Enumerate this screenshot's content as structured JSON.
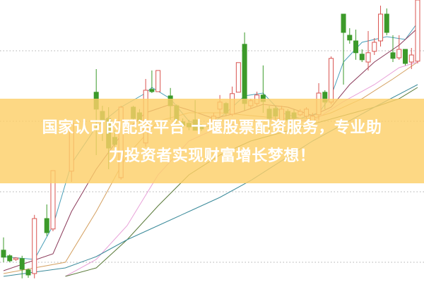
{
  "banner": {
    "line1": "国家认可的配资平台 十堰股票配资服务，专业助",
    "line2": "力投资者实现财富增长梦想！"
  },
  "chart_data": {
    "type": "candlestick",
    "title": "",
    "xlabel": "",
    "ylabel": "",
    "xlim": [
      0,
      67
    ],
    "ylim": [
      0,
      100
    ],
    "grid": true,
    "grid_values": [
      82,
      57,
      32,
      7
    ],
    "colors": {
      "up": "#d9534f",
      "down": "#3c9a2a",
      "grid": "#b0b0b0",
      "banner": "#fcd069"
    },
    "candles": [
      {
        "t": 0,
        "o": 11.3,
        "c": 8.8,
        "h": 15.8,
        "l": 7
      },
      {
        "t": 1,
        "o": 9.3,
        "c": 7.5,
        "h": 9.8,
        "l": 7
      },
      {
        "t": 2,
        "o": 8,
        "c": 8.5,
        "h": 8.8,
        "l": 7.5
      },
      {
        "t": 3,
        "o": 8.3,
        "c": 4.5,
        "h": 9.3,
        "l": 1.3
      },
      {
        "t": 4,
        "o": 4.3,
        "c": 2.5,
        "h": 4.8,
        "l": 1.5
      },
      {
        "t": 5,
        "o": 3,
        "c": 22.5,
        "h": 23.8,
        "l": 1.3
      },
      {
        "t": 7,
        "o": 22.5,
        "c": 17.5,
        "h": 27.5,
        "l": 16.3
      },
      {
        "t": 8,
        "o": 18.8,
        "c": 39.5,
        "h": 39.5,
        "l": 18
      },
      {
        "t": 11,
        "o": 39.3,
        "c": 56.3,
        "h": 57.5,
        "l": 35.5
      },
      {
        "t": 15,
        "o": 67.3,
        "c": 61.3,
        "h": 75.5,
        "l": 45
      },
      {
        "t": 16,
        "o": 60.5,
        "c": 57.5,
        "h": 62.5,
        "l": 50
      },
      {
        "t": 17,
        "o": 58,
        "c": 47.5,
        "h": 62,
        "l": 40
      },
      {
        "t": 18,
        "o": 51.3,
        "c": 48.8,
        "h": 53.8,
        "l": 47.5
      },
      {
        "t": 19,
        "o": 37,
        "c": 62,
        "h": 62.5,
        "l": 36.3
      },
      {
        "t": 21,
        "o": 62,
        "c": 58,
        "h": 62.5,
        "l": 57.5
      },
      {
        "t": 22,
        "o": 60,
        "c": 57.5,
        "h": 61.3,
        "l": 56.3
      },
      {
        "t": 23,
        "o": 49.3,
        "c": 68,
        "h": 72,
        "l": 48
      },
      {
        "t": 24,
        "o": 68.3,
        "c": 67.5,
        "h": 75,
        "l": 67
      },
      {
        "t": 25,
        "o": 67.5,
        "c": 75,
        "h": 75,
        "l": 67.5
      },
      {
        "t": 27,
        "o": 66,
        "c": 62.5,
        "h": 68.8,
        "l": 57.5
      },
      {
        "t": 28,
        "o": 62.5,
        "c": 57.5,
        "h": 63,
        "l": 56.3
      },
      {
        "t": 29,
        "o": 56.8,
        "c": 55.5,
        "h": 58,
        "l": 54.5
      },
      {
        "t": 30,
        "o": 56.3,
        "c": 55,
        "h": 57.5,
        "l": 53.8
      },
      {
        "t": 31,
        "o": 57.5,
        "c": 53.8,
        "h": 64.5,
        "l": 53.8
      },
      {
        "t": 32,
        "o": 55,
        "c": 54.3,
        "h": 56,
        "l": 53.5
      },
      {
        "t": 34,
        "o": 57,
        "c": 58.8,
        "h": 60,
        "l": 55.5
      },
      {
        "t": 35,
        "o": 61.3,
        "c": 63.8,
        "h": 66.3,
        "l": 58.8
      },
      {
        "t": 36,
        "o": 63.3,
        "c": 60,
        "h": 63.8,
        "l": 58.8
      },
      {
        "t": 37,
        "o": 59.5,
        "c": 66.8,
        "h": 69.3,
        "l": 58.8
      },
      {
        "t": 38,
        "o": 67.3,
        "c": 77.8,
        "h": 77.8,
        "l": 67.3
      },
      {
        "t": 39,
        "o": 84.3,
        "c": 63.3,
        "h": 88.5,
        "l": 60.8
      },
      {
        "t": 40,
        "o": 62.5,
        "c": 64.3,
        "h": 65,
        "l": 61.3
      },
      {
        "t": 41,
        "o": 63.3,
        "c": 66.3,
        "h": 67.5,
        "l": 62.5
      },
      {
        "t": 42,
        "o": 66.3,
        "c": 64,
        "h": 76.8,
        "l": 60
      },
      {
        "t": 43,
        "o": 61.3,
        "c": 58,
        "h": 62.5,
        "l": 53.8
      },
      {
        "t": 44,
        "o": 61.5,
        "c": 58.8,
        "h": 62.5,
        "l": 57.5
      },
      {
        "t": 45,
        "o": 56.8,
        "c": 61.3,
        "h": 62.5,
        "l": 54.3
      },
      {
        "t": 46,
        "o": 60.5,
        "c": 57.5,
        "h": 61.3,
        "l": 56.3
      },
      {
        "t": 47,
        "o": 60,
        "c": 58,
        "h": 61.3,
        "l": 57
      },
      {
        "t": 48,
        "o": 59.3,
        "c": 60.5,
        "h": 61.3,
        "l": 58.8
      },
      {
        "t": 49,
        "o": 58.8,
        "c": 61.3,
        "h": 62,
        "l": 58
      },
      {
        "t": 50,
        "o": 57,
        "c": 58.8,
        "h": 60,
        "l": 56.3
      },
      {
        "t": 51,
        "o": 59.3,
        "c": 67,
        "h": 70.5,
        "l": 57.5
      },
      {
        "t": 52,
        "o": 67.3,
        "c": 63.8,
        "h": 68,
        "l": 61.3
      },
      {
        "t": 53,
        "o": 63.8,
        "c": 79.3,
        "h": 80,
        "l": 63
      },
      {
        "t": 55,
        "o": 95,
        "c": 88.5,
        "h": 95,
        "l": 70
      },
      {
        "t": 56,
        "o": 87.5,
        "c": 85.8,
        "h": 90,
        "l": 84.5
      },
      {
        "t": 57,
        "o": 85.5,
        "c": 81.3,
        "h": 89.5,
        "l": 78.8
      },
      {
        "t": 58,
        "o": 80.8,
        "c": 78.8,
        "h": 82.5,
        "l": 78
      },
      {
        "t": 59,
        "o": 78,
        "c": 81.3,
        "h": 89,
        "l": 75
      },
      {
        "t": 60,
        "o": 81.8,
        "c": 85,
        "h": 86.5,
        "l": 80.5
      },
      {
        "t": 61,
        "o": 85.5,
        "c": 95,
        "h": 98,
        "l": 83.5
      },
      {
        "t": 62,
        "o": 95,
        "c": 88.5,
        "h": 97,
        "l": 87.5
      },
      {
        "t": 63,
        "o": 81.3,
        "c": 79.3,
        "h": 87.5,
        "l": 78
      },
      {
        "t": 64,
        "o": 79.5,
        "c": 82.5,
        "h": 87.5,
        "l": 78.8
      },
      {
        "t": 65,
        "o": 82.5,
        "c": 77.5,
        "h": 82.5,
        "l": 76.8
      },
      {
        "t": 66,
        "o": 78,
        "c": 80.5,
        "h": 83,
        "l": 75.5
      },
      {
        "t": 67,
        "o": 78.3,
        "c": 100,
        "h": 100,
        "l": 77.5
      }
    ],
    "moving_averages": [
      {
        "color": "#4a9fb8",
        "points": [
          [
            0,
            9
          ],
          [
            5,
            8
          ],
          [
            8,
            20
          ],
          [
            11,
            42
          ],
          [
            15,
            55
          ],
          [
            19,
            62
          ],
          [
            23,
            67
          ],
          [
            24,
            69
          ],
          [
            27,
            65
          ],
          [
            30,
            57
          ],
          [
            33,
            55
          ],
          [
            36,
            60
          ],
          [
            39,
            66
          ],
          [
            42,
            67
          ],
          [
            45,
            60
          ],
          [
            48,
            58
          ],
          [
            51,
            60
          ],
          [
            53,
            66
          ],
          [
            55,
            78
          ],
          [
            58,
            85
          ],
          [
            62,
            87
          ],
          [
            65,
            86
          ],
          [
            67,
            92
          ]
        ]
      },
      {
        "color": "#8b3a5a",
        "points": [
          [
            0,
            4
          ],
          [
            8,
            10
          ],
          [
            11,
            25
          ],
          [
            15,
            40
          ],
          [
            19,
            52
          ],
          [
            23,
            60
          ],
          [
            27,
            63
          ],
          [
            30,
            61
          ],
          [
            34,
            58
          ],
          [
            38,
            60
          ],
          [
            42,
            63
          ],
          [
            46,
            62
          ],
          [
            50,
            59
          ],
          [
            53,
            62
          ],
          [
            56,
            70
          ],
          [
            60,
            78
          ],
          [
            64,
            84
          ],
          [
            67,
            90
          ]
        ]
      },
      {
        "color": "#d4a060",
        "points": [
          [
            0,
            3
          ],
          [
            10,
            7
          ],
          [
            15,
            25
          ],
          [
            20,
            45
          ],
          [
            25,
            57
          ],
          [
            30,
            60
          ],
          [
            35,
            60
          ],
          [
            40,
            59
          ],
          [
            45,
            58
          ],
          [
            50,
            58
          ],
          [
            53,
            60
          ],
          [
            58,
            65
          ],
          [
            63,
            72
          ],
          [
            67,
            78
          ]
        ]
      },
      {
        "color": "#e8a0d8",
        "points": [
          [
            10,
            2
          ],
          [
            15,
            8
          ],
          [
            20,
            20
          ],
          [
            25,
            38
          ],
          [
            30,
            50
          ],
          [
            35,
            55
          ],
          [
            40,
            57
          ],
          [
            45,
            58
          ],
          [
            50,
            57
          ],
          [
            55,
            64
          ],
          [
            60,
            70
          ],
          [
            64,
            76
          ],
          [
            67,
            78
          ]
        ]
      },
      {
        "color": "#5a7a3a",
        "points": [
          [
            10,
            2
          ],
          [
            15,
            5
          ],
          [
            20,
            15
          ],
          [
            25,
            27
          ],
          [
            30,
            38
          ],
          [
            35,
            45
          ],
          [
            40,
            50
          ],
          [
            45,
            53
          ],
          [
            50,
            56
          ],
          [
            55,
            59
          ],
          [
            60,
            62
          ],
          [
            64,
            65
          ],
          [
            67,
            69
          ]
        ]
      },
      {
        "color": "#3a8a9a",
        "points": [
          [
            0,
            2
          ],
          [
            10,
            5
          ],
          [
            15,
            9
          ],
          [
            20,
            15
          ],
          [
            25,
            20
          ],
          [
            30,
            25
          ],
          [
            35,
            30
          ],
          [
            40,
            36
          ],
          [
            45,
            43
          ],
          [
            50,
            50
          ],
          [
            55,
            56
          ],
          [
            60,
            62
          ],
          [
            67,
            70
          ]
        ]
      }
    ]
  }
}
